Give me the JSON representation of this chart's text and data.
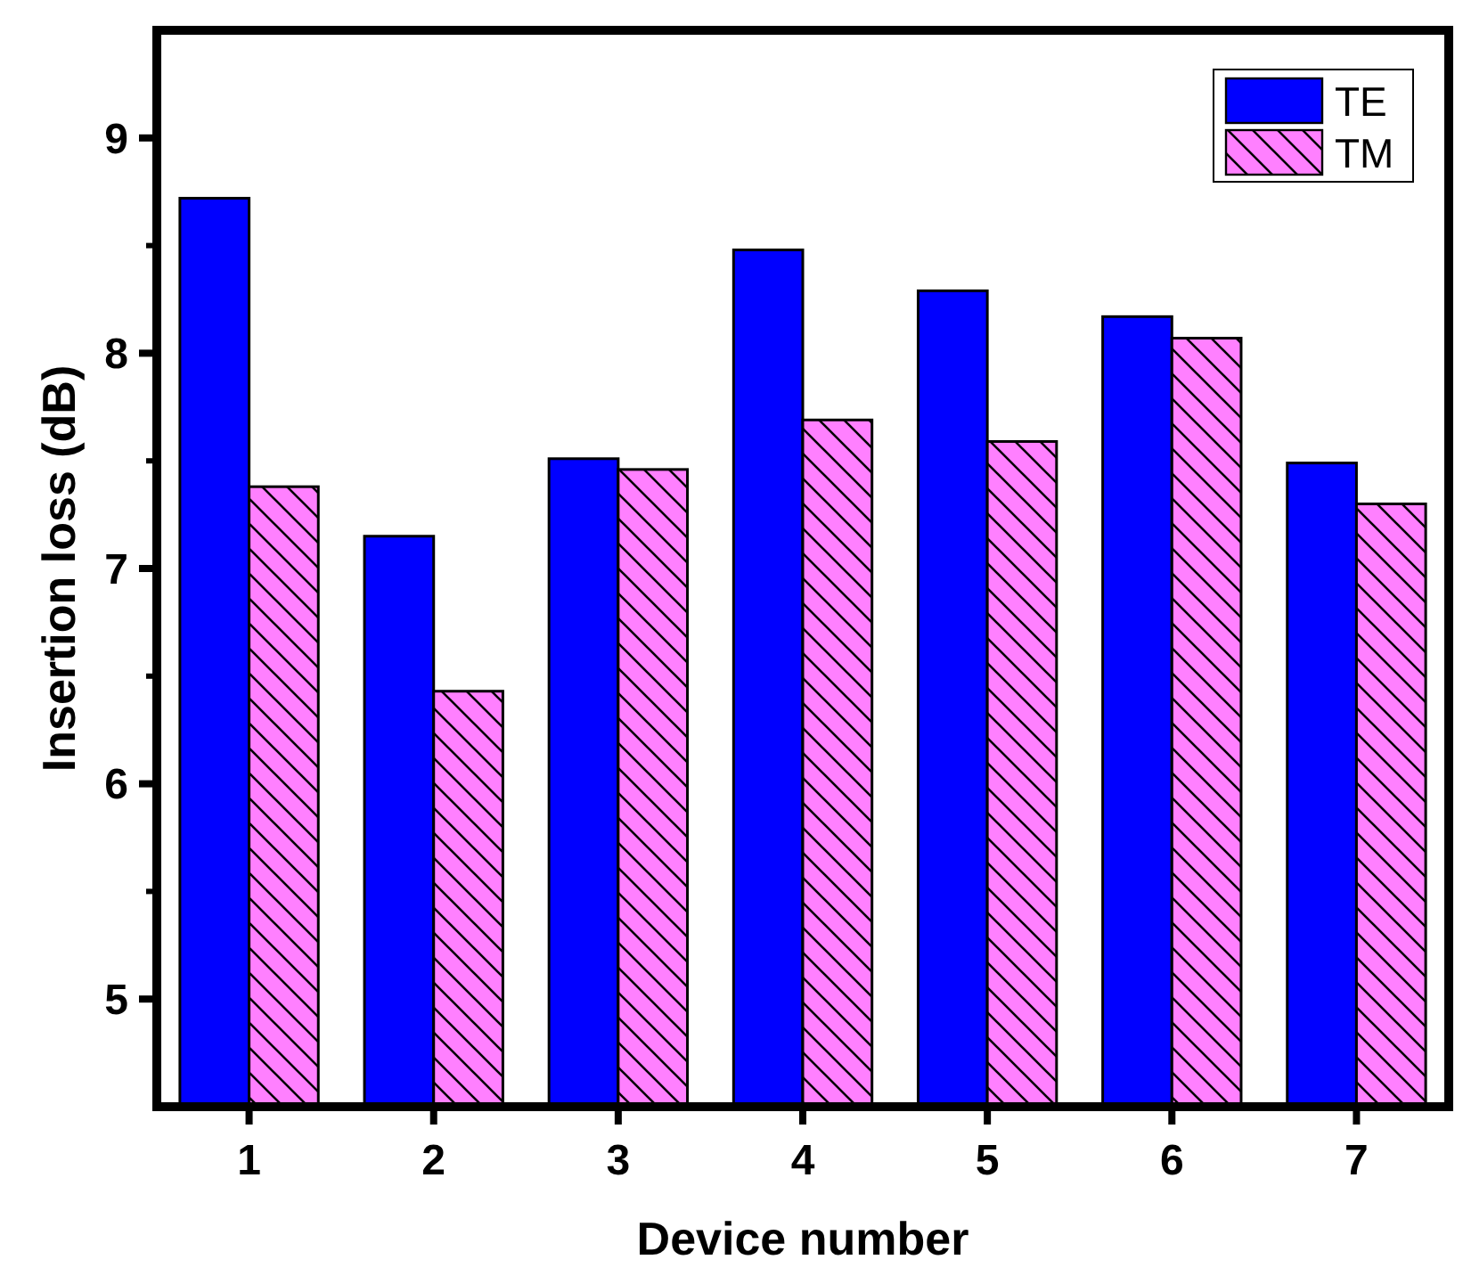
{
  "chart_data": {
    "type": "bar",
    "xlabel": "Device number",
    "ylabel": "Insertion loss (dB)",
    "categories": [
      "1",
      "2",
      "3",
      "4",
      "5",
      "6",
      "7"
    ],
    "series": [
      {
        "name": "TE",
        "color": "#0000ff",
        "values": [
          8.72,
          7.15,
          7.51,
          8.48,
          8.29,
          8.17,
          7.49
        ]
      },
      {
        "name": "TM",
        "color": "#ff80ff",
        "values": [
          7.38,
          6.43,
          7.46,
          7.69,
          7.59,
          8.07,
          7.3
        ]
      }
    ],
    "ylim": [
      4.5,
      9.5
    ],
    "yticks": [
      5,
      {
        "value": 5.5,
        "label": null
      },
      6,
      {
        "value": 6.5,
        "label": null
      },
      7,
      {
        "value": 7.5,
        "label": null
      },
      8,
      {
        "value": 8.5,
        "label": null
      },
      9
    ],
    "grid": false,
    "legend": "top right"
  }
}
